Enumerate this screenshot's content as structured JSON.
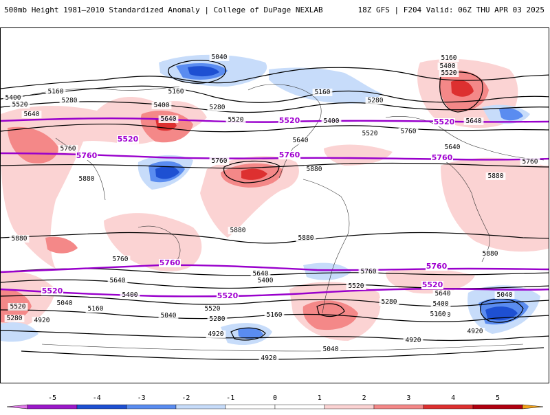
{
  "header": {
    "title_left": "500mb Height 1981–2010 Standardized Anomaly | College of DuPage NEXLAB",
    "title_right": "18Z GFS | F204 Valid: 06Z THU APR 03 2025"
  },
  "colors": {
    "neg5": "#e07ae8",
    "neg4": "#9b19c9",
    "neg3": "#1e50d2",
    "neg2": "#5a8cf0",
    "neg1": "#c7dcfa",
    "pos1": "#fbd3d3",
    "pos2": "#f48888",
    "pos3": "#dd3030",
    "pos4": "#b00010",
    "pos5": "#f3a21a",
    "contour": "#000000",
    "ref_contour": "#9900cc"
  },
  "map": {
    "contour_labels": [
      "5040",
      "5160",
      "5280",
      "5400",
      "5520",
      "5640",
      "5760",
      "5880",
      "4920"
    ],
    "reference_labels": [
      "5520",
      "5760"
    ]
  },
  "colorbar": {
    "ticks": [
      "-5",
      "-4",
      "-3",
      "-2",
      "-1",
      "0",
      "1",
      "2",
      "3",
      "4",
      "5"
    ]
  }
}
